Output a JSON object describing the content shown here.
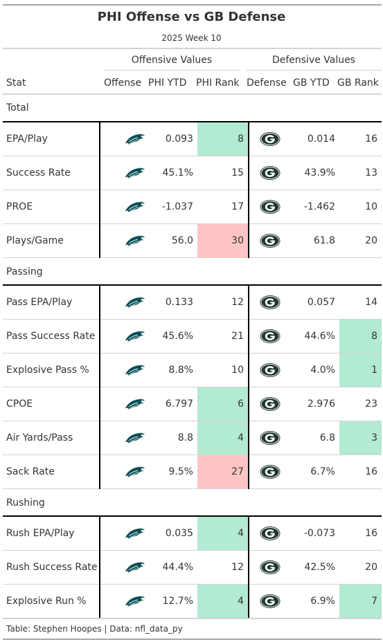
{
  "title": "PHI Offense vs GB Defense",
  "subtitle": "2025 Week 10",
  "spanners": {
    "offense": "Offensive Values",
    "defense": "Defensive Values"
  },
  "columns": {
    "stat": "Stat",
    "offense": "Offense",
    "phi_ytd": "PHI YTD",
    "phi_rank": "PHI Rank",
    "defense": "Defense",
    "gb_ytd": "GB YTD",
    "gb_rank": "GB Rank"
  },
  "colors": {
    "good": "#b3ead2",
    "bad": "#ffc4c4",
    "eagles_green": "#004c54",
    "packers_green": "#203731",
    "packers_gold": "#ffb612"
  },
  "icons": {
    "offense": "eagles-logo-icon",
    "defense": "packers-logo-icon"
  },
  "groups": [
    {
      "label": "Total",
      "rows": [
        {
          "stat": "EPA/Play",
          "phi_ytd": "0.093",
          "phi_rank": "8",
          "phi_hl": "good",
          "gb_ytd": "0.014",
          "gb_rank": "16",
          "gb_hl": ""
        },
        {
          "stat": "Success Rate",
          "phi_ytd": "45.1%",
          "phi_rank": "15",
          "phi_hl": "",
          "gb_ytd": "43.9%",
          "gb_rank": "13",
          "gb_hl": ""
        },
        {
          "stat": "PROE",
          "phi_ytd": "-1.037",
          "phi_rank": "17",
          "phi_hl": "",
          "gb_ytd": "-1.462",
          "gb_rank": "10",
          "gb_hl": ""
        },
        {
          "stat": "Plays/Game",
          "phi_ytd": "56.0",
          "phi_rank": "30",
          "phi_hl": "bad",
          "gb_ytd": "61.8",
          "gb_rank": "20",
          "gb_hl": ""
        }
      ]
    },
    {
      "label": "Passing",
      "rows": [
        {
          "stat": "Pass EPA/Play",
          "phi_ytd": "0.133",
          "phi_rank": "12",
          "phi_hl": "",
          "gb_ytd": "0.057",
          "gb_rank": "14",
          "gb_hl": ""
        },
        {
          "stat": "Pass Success Rate",
          "phi_ytd": "45.6%",
          "phi_rank": "21",
          "phi_hl": "",
          "gb_ytd": "44.6%",
          "gb_rank": "8",
          "gb_hl": "good"
        },
        {
          "stat": "Explosive Pass %",
          "phi_ytd": "8.8%",
          "phi_rank": "10",
          "phi_hl": "",
          "gb_ytd": "4.0%",
          "gb_rank": "1",
          "gb_hl": "good"
        },
        {
          "stat": "CPOE",
          "phi_ytd": "6.797",
          "phi_rank": "6",
          "phi_hl": "good",
          "gb_ytd": "2.976",
          "gb_rank": "23",
          "gb_hl": ""
        },
        {
          "stat": "Air Yards/Pass",
          "phi_ytd": "8.8",
          "phi_rank": "4",
          "phi_hl": "good",
          "gb_ytd": "6.8",
          "gb_rank": "3",
          "gb_hl": "good"
        },
        {
          "stat": "Sack Rate",
          "phi_ytd": "9.5%",
          "phi_rank": "27",
          "phi_hl": "bad",
          "gb_ytd": "6.7%",
          "gb_rank": "16",
          "gb_hl": ""
        }
      ]
    },
    {
      "label": "Rushing",
      "rows": [
        {
          "stat": "Rush EPA/Play",
          "phi_ytd": "0.035",
          "phi_rank": "4",
          "phi_hl": "good",
          "gb_ytd": "-0.073",
          "gb_rank": "16",
          "gb_hl": ""
        },
        {
          "stat": "Rush Success Rate",
          "phi_ytd": "44.4%",
          "phi_rank": "12",
          "phi_hl": "",
          "gb_ytd": "42.5%",
          "gb_rank": "20",
          "gb_hl": ""
        },
        {
          "stat": "Explosive Run %",
          "phi_ytd": "12.7%",
          "phi_rank": "4",
          "phi_hl": "good",
          "gb_ytd": "6.9%",
          "gb_rank": "7",
          "gb_hl": "good"
        }
      ]
    }
  ],
  "footer": "Table: Stephen Hoopes | Data: nfl_data_py"
}
